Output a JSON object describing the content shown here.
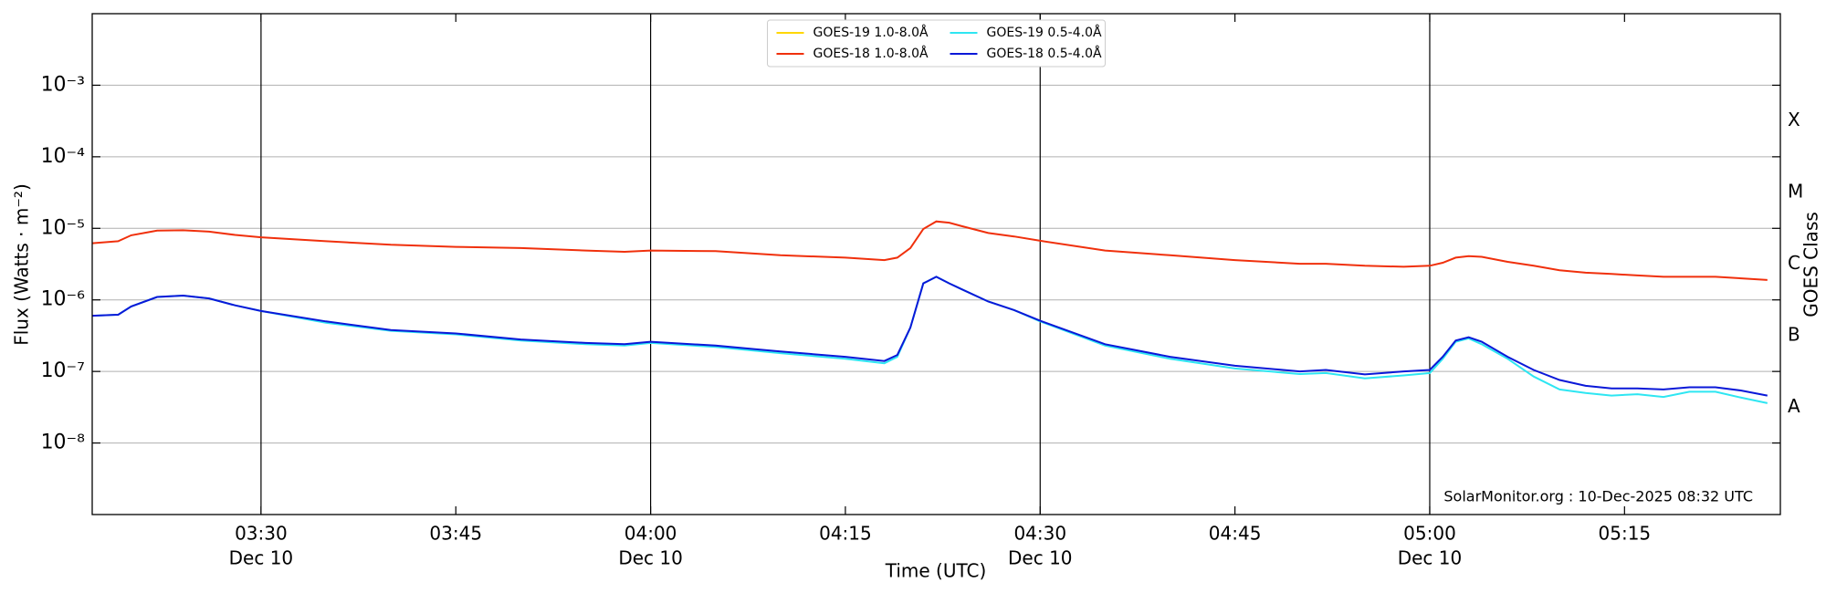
{
  "chart_data": {
    "type": "line",
    "xlabel": "Time (UTC)",
    "ylabel": "Flux (Watts · m⁻²)",
    "y2label": "GOES Class",
    "annotation": "SolarMonitor.org : 10-Dec-2025 08:32 UTC",
    "log_y": true,
    "grid": true,
    "legend": "upper center",
    "x": [
      "03:17",
      "03:19",
      "03:20",
      "03:22",
      "03:24",
      "03:26",
      "03:28",
      "03:30",
      "03:35",
      "03:40",
      "03:45",
      "03:50",
      "03:55",
      "03:58",
      "04:00",
      "04:05",
      "04:10",
      "04:15",
      "04:18",
      "04:19",
      "04:20",
      "04:21",
      "04:22",
      "04:23",
      "04:24",
      "04:26",
      "04:28",
      "04:30",
      "04:35",
      "04:40",
      "04:45",
      "04:50",
      "04:52",
      "04:55",
      "04:58",
      "05:00",
      "05:01",
      "05:02",
      "05:03",
      "05:04",
      "05:06",
      "05:08",
      "05:10",
      "05:12",
      "05:14",
      "05:16",
      "05:18",
      "05:20",
      "05:22",
      "05:24",
      "05:26"
    ],
    "xlim": [
      "03:17",
      "05:27"
    ],
    "xticks": [
      {
        "value": "03:30",
        "label": [
          "03:30",
          "Dec 10"
        ]
      },
      "03:45",
      {
        "value": "04:00",
        "label": [
          "04:00",
          "Dec 10"
        ]
      },
      "04:15",
      {
        "value": "04:30",
        "label": [
          "04:30",
          "Dec 10"
        ]
      },
      "04:45",
      {
        "value": "05:00",
        "label": [
          "05:00",
          "Dec 10"
        ]
      },
      "05:15"
    ],
    "vlines": [
      "03:30",
      "04:00",
      "04:30",
      "05:00"
    ],
    "ylim": [
      1e-09,
      0.01
    ],
    "yticks": [
      {
        "value": 1e-08,
        "label": "10⁻⁸"
      },
      {
        "value": 1e-07,
        "label": "10⁻⁷"
      },
      {
        "value": 1e-06,
        "label": "10⁻⁶"
      },
      {
        "value": 1e-05,
        "label": "10⁻⁵"
      },
      {
        "value": 0.0001,
        "label": "10⁻⁴"
      },
      {
        "value": 0.001,
        "label": "10⁻³"
      }
    ],
    "y2lim": [
      1e-09,
      0.01
    ],
    "y2ticks": [
      {
        "value": 3.162e-08,
        "label": "A"
      },
      {
        "value": 3.162e-07,
        "label": "B"
      },
      {
        "value": 3.162e-06,
        "label": "C"
      },
      {
        "value": 3.162e-05,
        "label": "M"
      },
      {
        "value": 0.0003162,
        "label": "X"
      }
    ],
    "series": [
      {
        "name": "GOES-19 1.0-8.0Å",
        "color": "#ffd700",
        "values": [
          null,
          null,
          null,
          null,
          null,
          null,
          null,
          null,
          null,
          null,
          null,
          null,
          null,
          null,
          null,
          null,
          null,
          null,
          null,
          null,
          null,
          null,
          null,
          null,
          null,
          null,
          null,
          null,
          null,
          null,
          null,
          null,
          null,
          null,
          null,
          null,
          null,
          null,
          null,
          null,
          null,
          null,
          null,
          null,
          null,
          null,
          null,
          null,
          null,
          null,
          null
        ]
      },
      {
        "name": "GOES-18 1.0-8.0Å",
        "color": "#f0300c",
        "values": [
          6.2e-06,
          6.6e-06,
          8e-06,
          9.3e-06,
          9.4e-06,
          9e-06,
          8.1e-06,
          7.5e-06,
          6.6e-06,
          5.9e-06,
          5.5e-06,
          5.3e-06,
          4.9e-06,
          4.7e-06,
          4.9e-06,
          4.8e-06,
          4.2e-06,
          3.9e-06,
          3.6e-06,
          3.9e-06,
          5.3e-06,
          9.8e-06,
          1.25e-05,
          1.2e-05,
          1.07e-05,
          8.6e-06,
          7.7e-06,
          6.7e-06,
          4.9e-06,
          4.2e-06,
          3.6e-06,
          3.2e-06,
          3.2e-06,
          3e-06,
          2.9e-06,
          3e-06,
          3.3e-06,
          3.9e-06,
          4.1e-06,
          4e-06,
          3.4e-06,
          3e-06,
          2.6e-06,
          2.4e-06,
          2.3e-06,
          2.2e-06,
          2.1e-06,
          2.1e-06,
          2.1e-06,
          2e-06,
          1.9e-06
        ]
      },
      {
        "name": "GOES-19 0.5-4.0Å",
        "color": "#2ee6f2",
        "values": [
          6e-07,
          6.2e-07,
          8.1e-07,
          1.1e-06,
          1.15e-06,
          1.05e-06,
          8.4e-07,
          7e-07,
          4.8e-07,
          3.7e-07,
          3.3e-07,
          2.7e-07,
          2.4e-07,
          2.3e-07,
          2.5e-07,
          2.2e-07,
          1.8e-07,
          1.5e-07,
          1.3e-07,
          1.6e-07,
          4.1e-07,
          1.7e-06,
          2.1e-06,
          1.7e-06,
          1.4e-06,
          9.5e-07,
          7.2e-07,
          5e-07,
          2.3e-07,
          1.5e-07,
          1.1e-07,
          9.2e-08,
          9.5e-08,
          8e-08,
          8.8e-08,
          9.5e-08,
          1.5e-07,
          2.6e-07,
          2.9e-07,
          2.4e-07,
          1.5e-07,
          8.5e-08,
          5.6e-08,
          5e-08,
          4.6e-08,
          4.8e-08,
          4.4e-08,
          5.2e-08,
          5.2e-08,
          4.3e-08,
          3.6e-08
        ]
      },
      {
        "name": "GOES-18 0.5-4.0Å",
        "color": "#0a18d8",
        "values": [
          6e-07,
          6.2e-07,
          8.1e-07,
          1.1e-06,
          1.15e-06,
          1.05e-06,
          8.4e-07,
          7e-07,
          5e-07,
          3.8e-07,
          3.4e-07,
          2.8e-07,
          2.5e-07,
          2.4e-07,
          2.6e-07,
          2.3e-07,
          1.9e-07,
          1.6e-07,
          1.4e-07,
          1.7e-07,
          4.1e-07,
          1.7e-06,
          2.1e-06,
          1.7e-06,
          1.4e-06,
          9.5e-07,
          7.2e-07,
          5.1e-07,
          2.4e-07,
          1.6e-07,
          1.2e-07,
          1e-07,
          1.05e-07,
          9.1e-08,
          1e-07,
          1.05e-07,
          1.6e-07,
          2.7e-07,
          3e-07,
          2.6e-07,
          1.6e-07,
          1.05e-07,
          7.6e-08,
          6.3e-08,
          5.8e-08,
          5.8e-08,
          5.6e-08,
          6e-08,
          6e-08,
          5.4e-08,
          4.6e-08
        ]
      }
    ]
  }
}
